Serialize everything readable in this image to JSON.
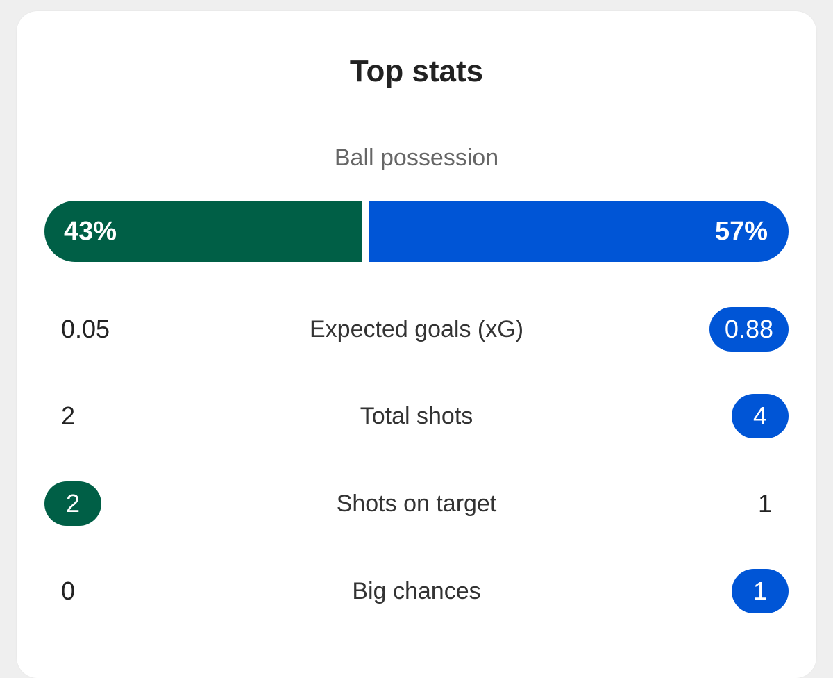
{
  "title": "Top stats",
  "colors": {
    "home": "#005f46",
    "away": "#0055d6"
  },
  "possession": {
    "label": "Ball possession",
    "home": 43,
    "away": 57,
    "home_label": "43%",
    "away_label": "57%"
  },
  "stats": [
    {
      "name": "Expected goals (xG)",
      "home": "0.05",
      "away": "0.88",
      "highlight": "away"
    },
    {
      "name": "Total shots",
      "home": "2",
      "away": "4",
      "highlight": "away"
    },
    {
      "name": "Shots on target",
      "home": "2",
      "away": "1",
      "highlight": "home"
    },
    {
      "name": "Big chances",
      "home": "0",
      "away": "1",
      "highlight": "away"
    }
  ]
}
